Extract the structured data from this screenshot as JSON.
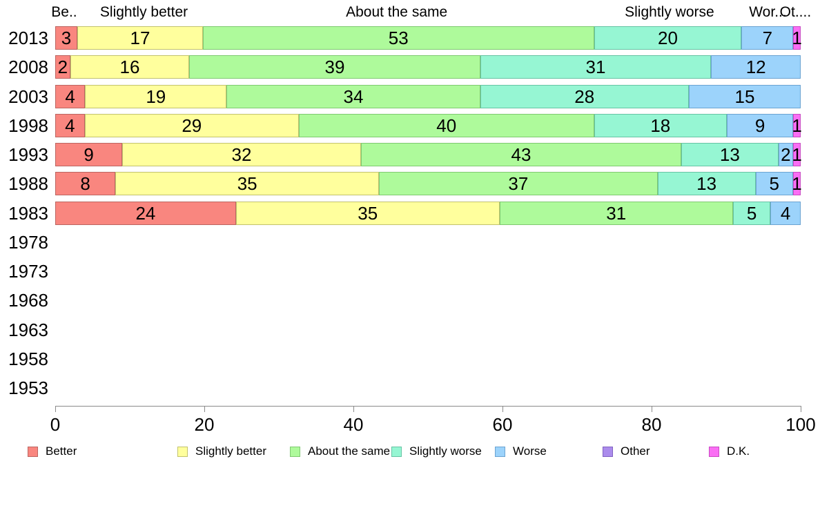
{
  "chart_data": {
    "type": "bar",
    "orientation": "horizontal",
    "stacked": true,
    "title": "",
    "xlabel": "",
    "ylabel": "",
    "xlim": [
      0,
      100
    ],
    "xticks": [
      "0",
      "20",
      "40",
      "60",
      "80",
      "100"
    ],
    "grid": false,
    "legend_position": "bottom",
    "categories": [
      "2013",
      "2008",
      "2003",
      "1998",
      "1993",
      "1988",
      "1983",
      "1978",
      "1973",
      "1968",
      "1963",
      "1958",
      "1953"
    ],
    "series": [
      {
        "name": "Better",
        "color": "#f9867f",
        "border": "#bb6560",
        "values": [
          3,
          2,
          4,
          4,
          9,
          8,
          24,
          null,
          null,
          null,
          null,
          null,
          null
        ]
      },
      {
        "name": "Slightly better",
        "color": "#ffff9d",
        "border": "#c2c26e",
        "values": [
          17,
          16,
          19,
          29,
          32,
          35,
          35,
          null,
          null,
          null,
          null,
          null,
          null
        ]
      },
      {
        "name": "About the same",
        "color": "#aefa9b",
        "border": "#7fc971",
        "values": [
          53,
          39,
          34,
          40,
          43,
          37,
          31,
          null,
          null,
          null,
          null,
          null,
          null
        ]
      },
      {
        "name": "Slightly worse",
        "color": "#96f6d3",
        "border": "#66c3a4",
        "values": [
          20,
          31,
          28,
          18,
          13,
          13,
          5,
          null,
          null,
          null,
          null,
          null,
          null
        ]
      },
      {
        "name": "Worse",
        "color": "#9cd3fb",
        "border": "#6ba3d1",
        "values": [
          7,
          12,
          15,
          9,
          2,
          5,
          4,
          null,
          null,
          null,
          null,
          null,
          null
        ]
      },
      {
        "name": "Other",
        "color": "#ab8cec",
        "border": "#8062c2",
        "values": [
          0,
          0,
          0,
          0,
          0,
          0,
          0,
          null,
          null,
          null,
          null,
          null,
          null
        ]
      },
      {
        "name": "D.K.",
        "color": "#fa6ef4",
        "border": "#c84ac2",
        "values": [
          1,
          0,
          0,
          1,
          1,
          1,
          0,
          null,
          null,
          null,
          null,
          null,
          null
        ]
      }
    ],
    "column_headers": [
      {
        "label": "Be..",
        "center_pct": 1.2
      },
      {
        "label": "Slightly better",
        "center_pct": 11.9
      },
      {
        "label": "About the same",
        "center_pct": 45.8
      },
      {
        "label": "Slightly worse",
        "center_pct": 82.4
      },
      {
        "label": "Wor...",
        "center_pct": 95.6
      },
      {
        "label": "Ot....",
        "center_pct": 99.3
      }
    ]
  }
}
